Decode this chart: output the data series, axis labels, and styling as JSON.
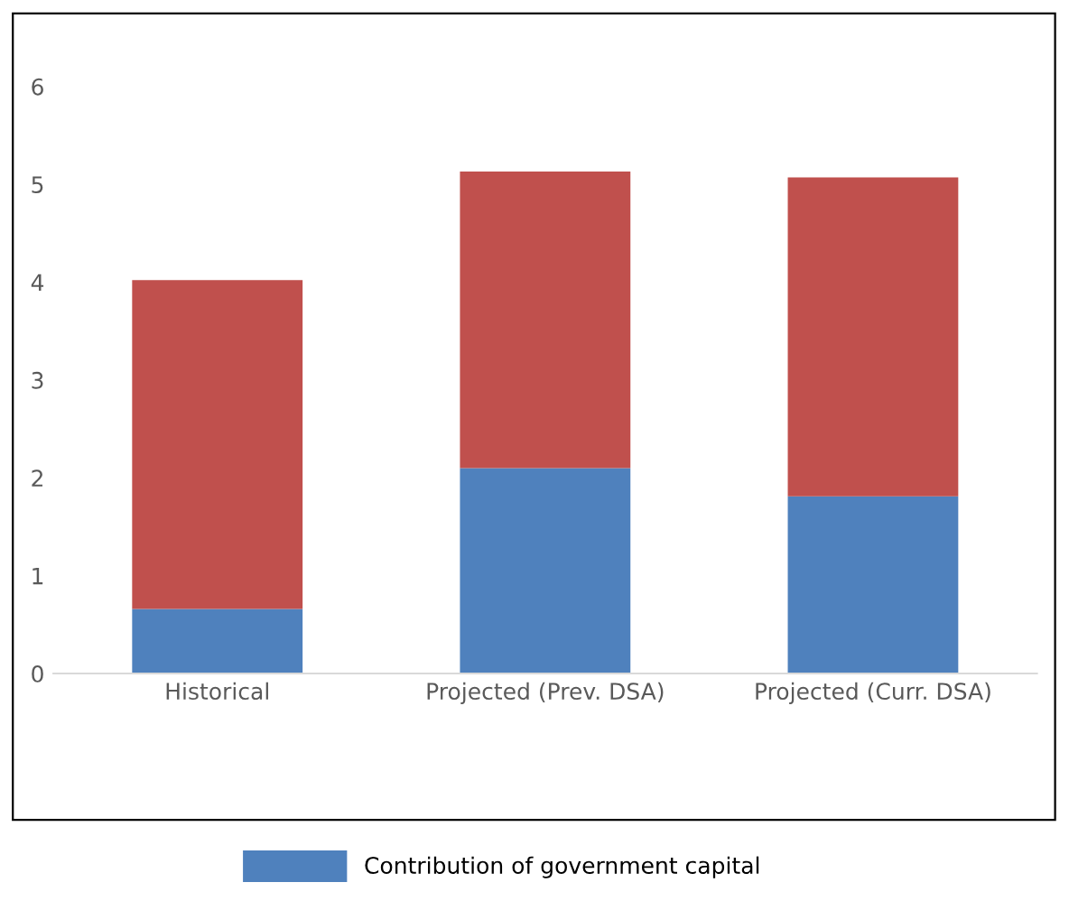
{
  "chart_data": {
    "type": "bar",
    "stacked": true,
    "categories": [
      "Historical",
      "Projected (Prev. DSA)",
      "Projected (Curr. DSA)"
    ],
    "series": [
      {
        "name": "Contribution of government capital",
        "color": "#4f81bd",
        "values": [
          0.66,
          2.1,
          1.81
        ]
      },
      {
        "color": "#c0504d",
        "values": [
          3.36,
          3.03,
          3.26
        ]
      }
    ],
    "ylim": [
      0,
      6
    ],
    "yticks": [
      0,
      1,
      2,
      3,
      4,
      5,
      6
    ],
    "grid": false,
    "legend": "bottom"
  }
}
